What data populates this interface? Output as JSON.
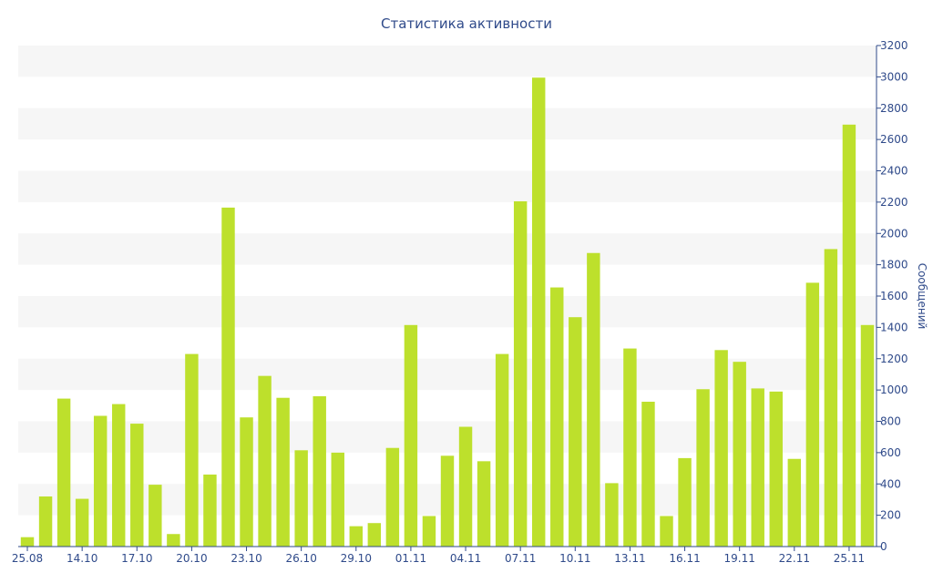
{
  "colors": {
    "bar": "#bde02c",
    "band": "#f6f6f6",
    "axis": "#2f4a8a",
    "text": "#2f4a8a"
  },
  "chart_data": {
    "type": "bar",
    "title": "Статистика активности",
    "xlabel": "",
    "ylabel": "Сообщений",
    "y_axis_side": "right",
    "ylim": [
      0,
      3200
    ],
    "y_ticks": [
      0,
      200,
      400,
      600,
      800,
      1000,
      1200,
      1400,
      1600,
      1800,
      2000,
      2200,
      2400,
      2600,
      2800,
      3000,
      3200
    ],
    "grid": "alternating horizontal bands",
    "x_tick_labels": [
      "25.08",
      "14.10",
      "17.10",
      "20.10",
      "23.10",
      "26.10",
      "29.10",
      "01.11",
      "04.11",
      "07.11",
      "10.11",
      "13.11",
      "16.11",
      "19.11",
      "22.11",
      "25.11"
    ],
    "x_tick_every": 3,
    "values": [
      60,
      320,
      945,
      305,
      835,
      910,
      785,
      395,
      80,
      1230,
      460,
      2165,
      825,
      1090,
      950,
      615,
      960,
      600,
      130,
      150,
      630,
      1415,
      195,
      580,
      765,
      545,
      1230,
      2205,
      2995,
      1655,
      1465,
      1875,
      405,
      1265,
      925,
      195,
      565,
      1005,
      1255,
      1180,
      1010,
      990,
      560,
      1685,
      1900,
      2695,
      1415
    ]
  }
}
